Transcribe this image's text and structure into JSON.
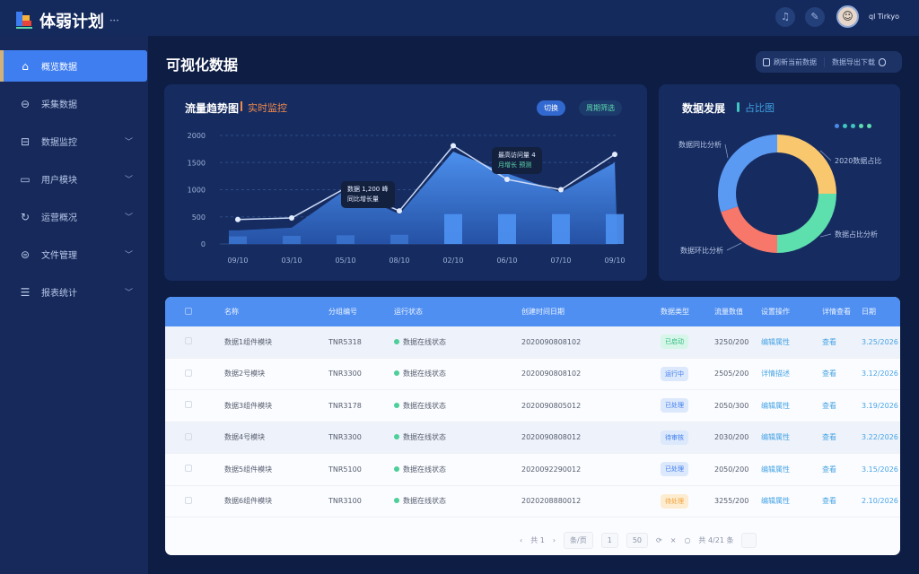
{
  "app": {
    "title": "体弱计划",
    "subtitle": "•••",
    "username": "ql Tirkyo"
  },
  "header": {
    "icons": [
      "bell-icon",
      "settings-icon"
    ]
  },
  "sidebar": {
    "items": [
      {
        "label": "概览数据",
        "icon": "⌂",
        "active": true,
        "chevron": false
      },
      {
        "label": "采集数据",
        "icon": "⊖",
        "active": false,
        "chevron": false
      },
      {
        "label": "数据监控",
        "icon": "⊟",
        "active": false,
        "chevron": true
      },
      {
        "label": "用户模块",
        "icon": "▭",
        "active": false,
        "chevron": true
      },
      {
        "label": "运营概况",
        "icon": "↻",
        "active": false,
        "chevron": true
      },
      {
        "label": "文件管理",
        "icon": "⊜",
        "active": false,
        "chevron": true
      },
      {
        "label": "报表统计",
        "icon": "☰",
        "active": false,
        "chevron": true
      }
    ]
  },
  "page": {
    "title": "可视化数据"
  },
  "toolbar": {
    "left_label": "刷新当前数据",
    "right_label": "数据导出下载"
  },
  "line_card": {
    "title": "流量趋势图",
    "subtitle": "实时监控",
    "pill_primary": "切换",
    "pill_secondary": "周期筛选"
  },
  "tooltips": [
    {
      "line1": "数据 1,200 峰",
      "line2": "同比增长量"
    },
    {
      "line1": "最高访问量 4",
      "line2": "月增长 预测"
    }
  ],
  "chart_data": {
    "type": "area",
    "categories": [
      "09/10",
      "03/10",
      "05/10",
      "08/10",
      "02/10",
      "06/10",
      "07/10",
      "09/10"
    ],
    "yticks": [
      "0",
      "500",
      "1000",
      "1500",
      "2000"
    ],
    "ylim": [
      0,
      2000
    ],
    "grid": true,
    "series": [
      {
        "type": "line",
        "values": [
          450,
          480,
          1030,
          610,
          1810,
          1190,
          1000,
          1650
        ]
      },
      {
        "type": "area",
        "values": [
          250,
          300,
          1000,
          550,
          1700,
          1300,
          950,
          1500
        ]
      },
      {
        "type": "bar",
        "values": [
          140,
          150,
          160,
          170,
          550,
          550,
          550,
          550
        ]
      }
    ]
  },
  "donut_card": {
    "title": "数据发展",
    "subtitle": "占比图",
    "chart_data": {
      "type": "pie",
      "values": [
        25,
        25,
        20,
        30
      ],
      "labels": [
        "2020数据占比",
        "数据占比分析",
        "数据环比分析",
        "数据同比分析"
      ],
      "colors": [
        "#f9c76e",
        "#5ddfae",
        "#f8776b",
        "#5a9af3"
      ]
    }
  },
  "table": {
    "headers": [
      "",
      "名称",
      "分组编号",
      "运行状态",
      "创建时间日期",
      "数据类型",
      "流量数值",
      "设置操作",
      "详情查看",
      "日期"
    ],
    "rows": [
      {
        "name": "数据1组件模块",
        "code": "TNR5318",
        "status": "数据在线状态",
        "date": "2020090808102",
        "type": "已启动",
        "type_color": "green",
        "value": "3250/200",
        "op": "编辑属性",
        "view": "查看",
        "day": "3.25/2026"
      },
      {
        "name": "数据2号模块",
        "code": "TNR3300",
        "status": "数据在线状态",
        "date": "2020090808102",
        "type": "运行中",
        "type_color": "blue",
        "value": "2505/200",
        "op": "详情描述",
        "view": "查看",
        "day": "3.12/2026"
      },
      {
        "name": "数据3组件模块",
        "code": "TNR3178",
        "status": "数据在线状态",
        "date": "2020090805012",
        "type": "已处理",
        "type_color": "blue",
        "value": "2050/300",
        "op": "编辑属性",
        "view": "查看",
        "day": "3.19/2026"
      },
      {
        "name": "数据4号模块",
        "code": "TNR3300",
        "status": "数据在线状态",
        "date": "2020090808012",
        "type": "待审核",
        "type_color": "blue",
        "value": "2030/200",
        "op": "编辑属性",
        "view": "查看",
        "day": "3.22/2026"
      },
      {
        "name": "数据5组件模块",
        "code": "TNR5100",
        "status": "数据在线状态",
        "date": "2020092290012",
        "type": "已处理",
        "type_color": "blue",
        "value": "2050/200",
        "op": "编辑属性",
        "view": "查看",
        "day": "3.15/2026"
      },
      {
        "name": "数据6组件模块",
        "code": "TNR3100",
        "status": "数据在线状态",
        "date": "2020208880012",
        "type": "待处理",
        "type_color": "orange",
        "value": "3255/200",
        "op": "编辑属性",
        "view": "查看",
        "day": "2.10/2026"
      }
    ],
    "pager": {
      "info": "共 1",
      "page_size": "条/页",
      "current": "1",
      "goto": "50",
      "total": "共 4/21 条"
    }
  },
  "colors": {
    "accent": "#3f7ef0",
    "table_header": "#4f8ff2",
    "bg": "#0e1d44"
  }
}
